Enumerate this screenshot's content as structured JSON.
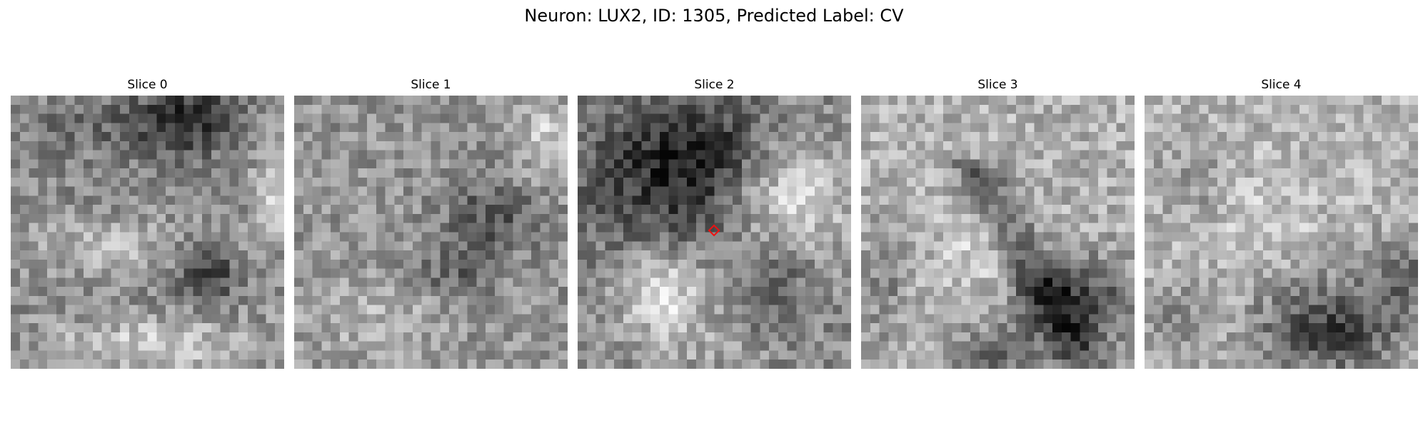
{
  "figure": {
    "title": "Neuron: LUX2, ID: 1305, Predicted Label: CV"
  },
  "panels": [
    {
      "title": "Slice 0"
    },
    {
      "title": "Slice 1"
    },
    {
      "title": "Slice 2"
    },
    {
      "title": "Slice 3"
    },
    {
      "title": "Slice 4"
    }
  ],
  "colors": {
    "marker": "#ee1111",
    "colormap": "gray"
  },
  "marker_panel": 2
}
